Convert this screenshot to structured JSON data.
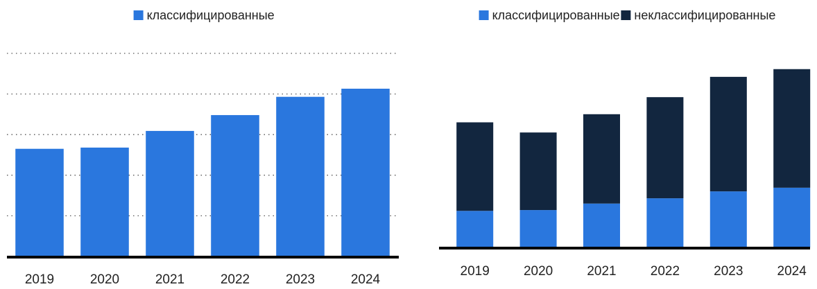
{
  "chart_data": [
    {
      "type": "bar",
      "categories": [
        "2019",
        "2020",
        "2021",
        "2022",
        "2023",
        "2024"
      ],
      "series": [
        {
          "name": "классифицированные",
          "color": "#2a77de",
          "values": [
            2.65,
            2.68,
            3.09,
            3.48,
            3.93,
            4.13
          ]
        }
      ],
      "ylim": [
        0,
        5
      ],
      "yticks": [
        0,
        1,
        2,
        3,
        4,
        5
      ],
      "grid": true
    },
    {
      "type": "stacked_bar",
      "categories": [
        "2019",
        "2020",
        "2021",
        "2022",
        "2023",
        "2024"
      ],
      "series": [
        {
          "name": "классифицированные",
          "color": "#2a77de",
          "values": [
            0.9,
            0.92,
            1.08,
            1.21,
            1.38,
            1.47
          ]
        },
        {
          "name": "неклассифицированные",
          "color": "#12263f",
          "values": [
            2.18,
            1.91,
            2.2,
            2.49,
            2.82,
            2.92
          ]
        }
      ],
      "ylim": [
        0,
        5
      ],
      "grid": false
    }
  ]
}
